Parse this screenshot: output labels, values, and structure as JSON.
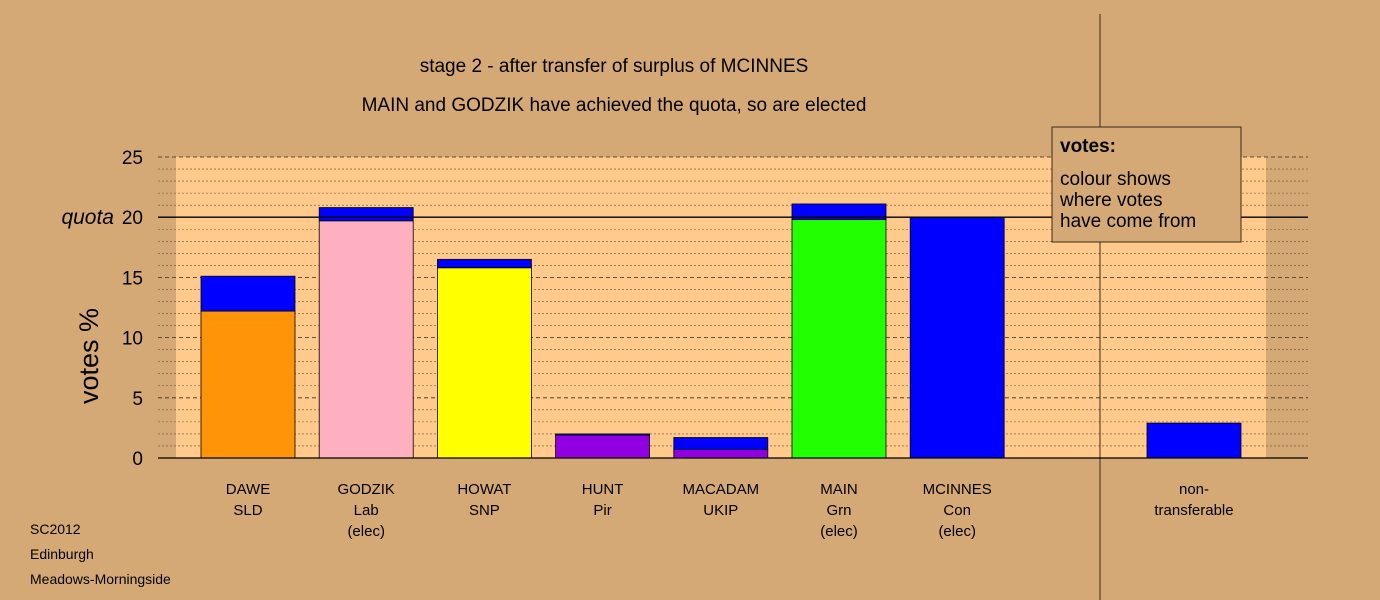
{
  "chart_data": {
    "type": "bar",
    "title": "stage 2 - after transfer of surplus of MCINNES",
    "subtitle": "MAIN and GODZIK have achieved the quota, so are elected",
    "ylabel": "votes %",
    "ylim": [
      0,
      25
    ],
    "yticks": [
      0,
      5,
      10,
      15,
      20,
      25
    ],
    "quota": 20,
    "quota_label": "quota",
    "grid": true,
    "legend_placement": "top-right",
    "legend": {
      "title": "votes:",
      "lines": [
        "colour shows",
        "where votes",
        "have come from"
      ]
    },
    "candidates": [
      {
        "name": "DAWE",
        "party": "SLD",
        "status": "",
        "segments": [
          {
            "value": 12.2,
            "color": "#ff9408"
          },
          {
            "value": 2.9,
            "color": "#0000ff"
          }
        ]
      },
      {
        "name": "GODZIK",
        "party": "Lab",
        "status": "(elec)",
        "segments": [
          {
            "value": 19.7,
            "color": "#ffb0c0"
          },
          {
            "value": 1.1,
            "color": "#0000ff"
          }
        ]
      },
      {
        "name": "HOWAT",
        "party": "SNP",
        "status": "",
        "segments": [
          {
            "value": 15.8,
            "color": "#ffff00"
          },
          {
            "value": 0.7,
            "color": "#0000ff"
          }
        ]
      },
      {
        "name": "HUNT",
        "party": "Pir",
        "status": "",
        "segments": [
          {
            "value": 1.9,
            "color": "#9000e0"
          },
          {
            "value": 0.1,
            "color": "#0000ff"
          }
        ]
      },
      {
        "name": "MACADAM",
        "party": "UKIP",
        "status": "",
        "segments": [
          {
            "value": 0.7,
            "color": "#9000e0"
          },
          {
            "value": 1.0,
            "color": "#0000ff"
          }
        ]
      },
      {
        "name": "MAIN",
        "party": "Grn",
        "status": "(elec)",
        "segments": [
          {
            "value": 19.8,
            "color": "#22ff00"
          },
          {
            "value": 1.3,
            "color": "#0000ff"
          }
        ]
      },
      {
        "name": "MCINNES",
        "party": "Con",
        "status": "(elec)",
        "segments": [
          {
            "value": 20.0,
            "color": "#0000ff"
          }
        ]
      }
    ],
    "nontransferable": {
      "label_lines": [
        "non-",
        "transferable"
      ],
      "segments": [
        {
          "value": 2.9,
          "color": "#0000ff"
        }
      ]
    },
    "footer": [
      "SC2012",
      "Edinburgh",
      "Meadows-Morningside"
    ],
    "colors": {
      "background": "#d4a975",
      "plot_area": "#ffca8b",
      "legend_box": "#d4a975"
    }
  }
}
